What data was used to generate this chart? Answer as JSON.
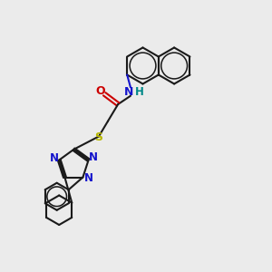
{
  "bg_color": "#ebebeb",
  "bond_color": "#1a1a1a",
  "bond_width": 1.5,
  "N_color": "#1414cc",
  "O_color": "#cc0000",
  "S_color": "#b8b800",
  "H_color": "#008888",
  "font_size": 8.5,
  "fig_size": [
    3.0,
    3.0
  ],
  "dpi": 100,
  "xlim": [
    0,
    12
  ],
  "ylim": [
    0,
    12
  ]
}
